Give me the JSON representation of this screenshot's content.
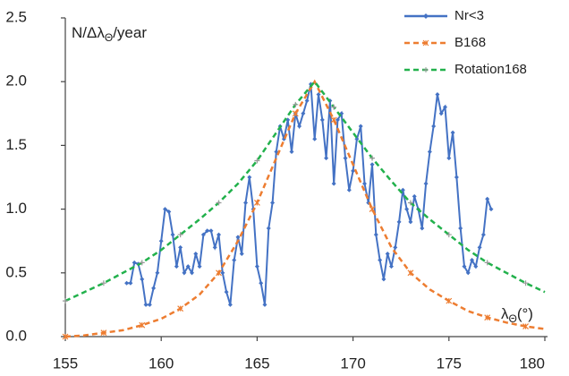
{
  "chart_data": {
    "type": "line",
    "ylabel": {
      "main": "N/Δλ",
      "sub": "Θ",
      "rest": "/year"
    },
    "xlabel": {
      "main": "λ",
      "sub": "Θ",
      "rest": "(°)"
    },
    "xlim": [
      155,
      180
    ],
    "xticks": [
      155,
      160,
      165,
      170,
      175,
      180
    ],
    "ylim": [
      0,
      2.5
    ],
    "yticks": [
      {
        "value": 0,
        "label": "0.0"
      },
      0.5,
      {
        "value": 1,
        "label": "1.0"
      },
      1.5,
      {
        "value": 2,
        "label": "2.0"
      },
      2.5
    ],
    "legend": "top-right",
    "series": [
      {
        "name": "Nr<3",
        "color": "#4472c4",
        "marker": "diamond",
        "x": [
          158.2,
          158.4,
          158.6,
          158.8,
          159.0,
          159.2,
          159.4,
          159.6,
          159.8,
          160.0,
          160.2,
          160.4,
          160.6,
          160.8,
          161.0,
          161.2,
          161.4,
          161.6,
          161.8,
          162.0,
          162.2,
          162.4,
          162.6,
          162.8,
          163.0,
          163.2,
          163.4,
          163.6,
          163.8,
          164.0,
          164.2,
          164.4,
          164.6,
          164.8,
          165.0,
          165.2,
          165.4,
          165.6,
          165.8,
          166.0,
          166.2,
          166.4,
          166.6,
          166.8,
          167.0,
          167.2,
          167.4,
          167.6,
          167.8,
          168.0,
          168.2,
          168.4,
          168.6,
          168.8,
          169.0,
          169.2,
          169.4,
          169.6,
          169.8,
          170.0,
          170.2,
          170.4,
          170.6,
          170.8,
          171.0,
          171.2,
          171.4,
          171.6,
          171.8,
          172.0,
          172.2,
          172.4,
          172.6,
          172.8,
          173.0,
          173.2,
          173.4,
          173.6,
          173.8,
          174.0,
          174.2,
          174.4,
          174.6,
          174.8,
          175.0,
          175.2,
          175.4,
          175.6,
          175.8,
          176.0,
          176.2,
          176.4,
          176.6,
          176.8,
          177.0,
          177.2
        ],
        "values": [
          0.42,
          0.42,
          0.58,
          0.57,
          0.45,
          0.25,
          0.25,
          0.38,
          0.5,
          0.75,
          1.0,
          0.98,
          0.8,
          0.55,
          0.7,
          0.5,
          0.55,
          0.5,
          0.65,
          0.55,
          0.8,
          0.83,
          0.83,
          0.7,
          0.8,
          0.5,
          0.35,
          0.25,
          0.6,
          0.78,
          0.65,
          1.05,
          1.25,
          1.0,
          0.55,
          0.42,
          0.25,
          0.85,
          1.05,
          1.45,
          1.65,
          1.55,
          1.7,
          1.45,
          1.75,
          1.65,
          1.75,
          1.85,
          1.98,
          1.55,
          1.9,
          1.7,
          1.4,
          1.85,
          1.2,
          1.7,
          1.75,
          1.4,
          1.15,
          1.3,
          1.55,
          1.65,
          1.2,
          1.05,
          1.35,
          0.8,
          0.6,
          0.45,
          0.65,
          0.55,
          0.7,
          0.9,
          1.15,
          1.0,
          0.9,
          1.1,
          1.0,
          0.85,
          1.2,
          1.45,
          1.65,
          1.9,
          1.75,
          1.8,
          1.4,
          1.6,
          1.25,
          0.85,
          0.55,
          0.5,
          0.6,
          0.55,
          0.7,
          0.8,
          1.08,
          1.0
        ]
      },
      {
        "name": "B168",
        "color": "#ed7d31",
        "marker": "star",
        "x": [
          155,
          156,
          157,
          158,
          159,
          160,
          161,
          162,
          163,
          164,
          165,
          166,
          167,
          168,
          169,
          170,
          171,
          172,
          173,
          174,
          175,
          176,
          177,
          178,
          179,
          180
        ],
        "values": [
          0.0,
          0.01,
          0.03,
          0.05,
          0.09,
          0.14,
          0.22,
          0.33,
          0.5,
          0.75,
          1.05,
          1.4,
          1.75,
          2.0,
          1.7,
          1.35,
          1.0,
          0.7,
          0.5,
          0.37,
          0.28,
          0.2,
          0.15,
          0.11,
          0.08,
          0.06
        ]
      },
      {
        "name": "Rotation168",
        "color": "#22b14c",
        "marker": "plus",
        "x": [
          155,
          156,
          157,
          158,
          159,
          160,
          161,
          162,
          163,
          164,
          165,
          166,
          167,
          168,
          169,
          170,
          171,
          172,
          173,
          174,
          175,
          176,
          177,
          178,
          179,
          180
        ],
        "values": [
          0.28,
          0.35,
          0.42,
          0.5,
          0.58,
          0.68,
          0.8,
          0.92,
          1.05,
          1.2,
          1.38,
          1.6,
          1.82,
          2.0,
          1.8,
          1.6,
          1.4,
          1.22,
          1.05,
          0.92,
          0.8,
          0.68,
          0.58,
          0.5,
          0.42,
          0.35
        ]
      }
    ]
  }
}
